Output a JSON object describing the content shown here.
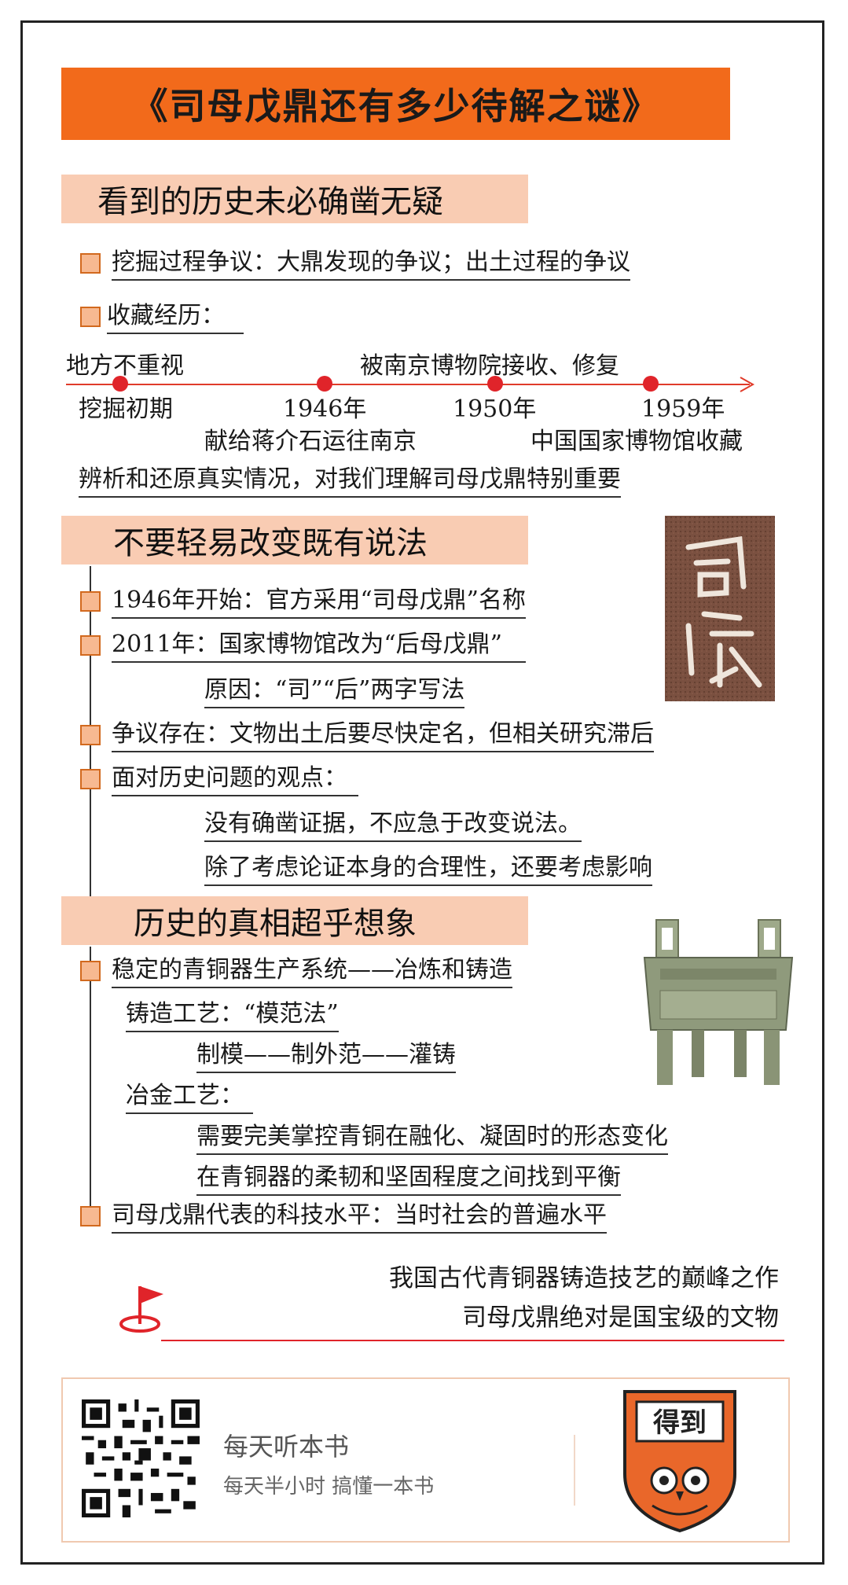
{
  "title": "《司母戊鼎还有多少待解之谜》",
  "section1": {
    "heading": "看到的历史未必确凿无疑",
    "item1": "挖掘过程争议：大鼎发现的争议；出土过程的争议",
    "item2": "收藏经历：",
    "timeline": {
      "above_labels": [
        "地方不重视",
        "被南京博物院接收、修复"
      ],
      "points": [
        "挖掘初期",
        "1946年",
        "1950年",
        "1959年"
      ],
      "below_labels": [
        "献给蒋介石运往南京",
        "中国国家博物馆收藏"
      ]
    },
    "conclusion": "辨析和还原真实情况，对我们理解司母戊鼎特别重要"
  },
  "section2": {
    "heading": "不要轻易改变既有说法",
    "item1": "1946年开始：官方采用“司母戊鼎”名称",
    "item2": "2011年：国家博物馆改为“后母戊鼎”",
    "item2_sub": "原因：“司”“后”两字写法",
    "item3": "争议存在：文物出土后要尽快定名，但相关研究滞后",
    "item4": "面对历史问题的观点：",
    "item4_sub1": "没有确凿证据，不应急于改变说法。",
    "item4_sub2": "除了考虑论证本身的合理性，还要考虑影响"
  },
  "section3": {
    "heading": "历史的真相超乎想象",
    "item1": "稳定的青铜器生产系统——冶炼和铸造",
    "casting_label": "铸造工艺：“模范法”",
    "casting_steps": "制模——制外范——灌铸",
    "metal_label": "冶金工艺：",
    "metal_sub1": "需要完美掌控青铜在融化、凝固时的形态变化",
    "metal_sub2": "在青铜器的柔韧和坚固程度之间找到平衡",
    "item2": "司母戊鼎代表的科技水平：当时社会的普遍水平"
  },
  "summary": {
    "line1": "我国古代青铜器铸造技艺的巅峰之作",
    "line2": "司母戊鼎绝对是国宝级的文物"
  },
  "footer": {
    "line1": "每天听本书",
    "line2": "每天半小时  搞懂一本书",
    "logo_text": "得到"
  },
  "colors": {
    "accent": "#f26a1b",
    "section_bg": "#f9ccb3",
    "timeline": "#e03b2a"
  }
}
